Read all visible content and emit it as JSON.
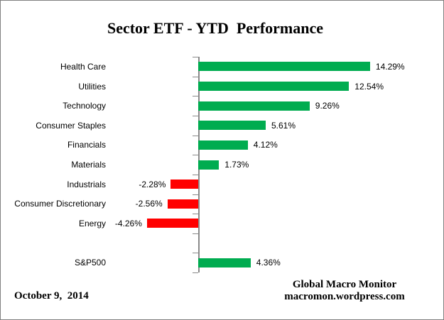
{
  "title": "Sector ETF - YTD  Performance",
  "footer": {
    "date": "October 9,  2014",
    "source_line1": "Global Macro Monitor",
    "source_line2": "macromon.wordpress.com"
  },
  "colors": {
    "positive_bar": "#00AC50",
    "negative_bar": "#FF0000",
    "axis": "#898989",
    "border": "#808080",
    "text": "#000000"
  },
  "chart_data": {
    "type": "bar",
    "orientation": "horizontal",
    "title": "Sector ETF - YTD  Performance",
    "xlabel": "",
    "ylabel": "",
    "legend": "none",
    "gridlines": false,
    "value_axis_visible": false,
    "value_unit": "%",
    "xlim": [
      -5,
      15
    ],
    "categories": [
      "Health Care",
      "Utilities",
      "Technology",
      "Consumer Staples",
      "Financials",
      "Materials",
      "Industrials",
      "Consumer Discretionary",
      "Energy",
      "",
      "S&P500"
    ],
    "values": [
      14.29,
      12.54,
      9.26,
      5.61,
      4.12,
      1.73,
      -2.28,
      -2.56,
      -4.26,
      null,
      4.36
    ],
    "value_labels": [
      "14.29%",
      "12.54%",
      "9.26%",
      "5.61%",
      "4.12%",
      "1.73%",
      "-2.28%",
      "-2.56%",
      "-4.26%",
      "",
      "4.36%"
    ],
    "color_rule": "green if value >= 0 else red"
  }
}
